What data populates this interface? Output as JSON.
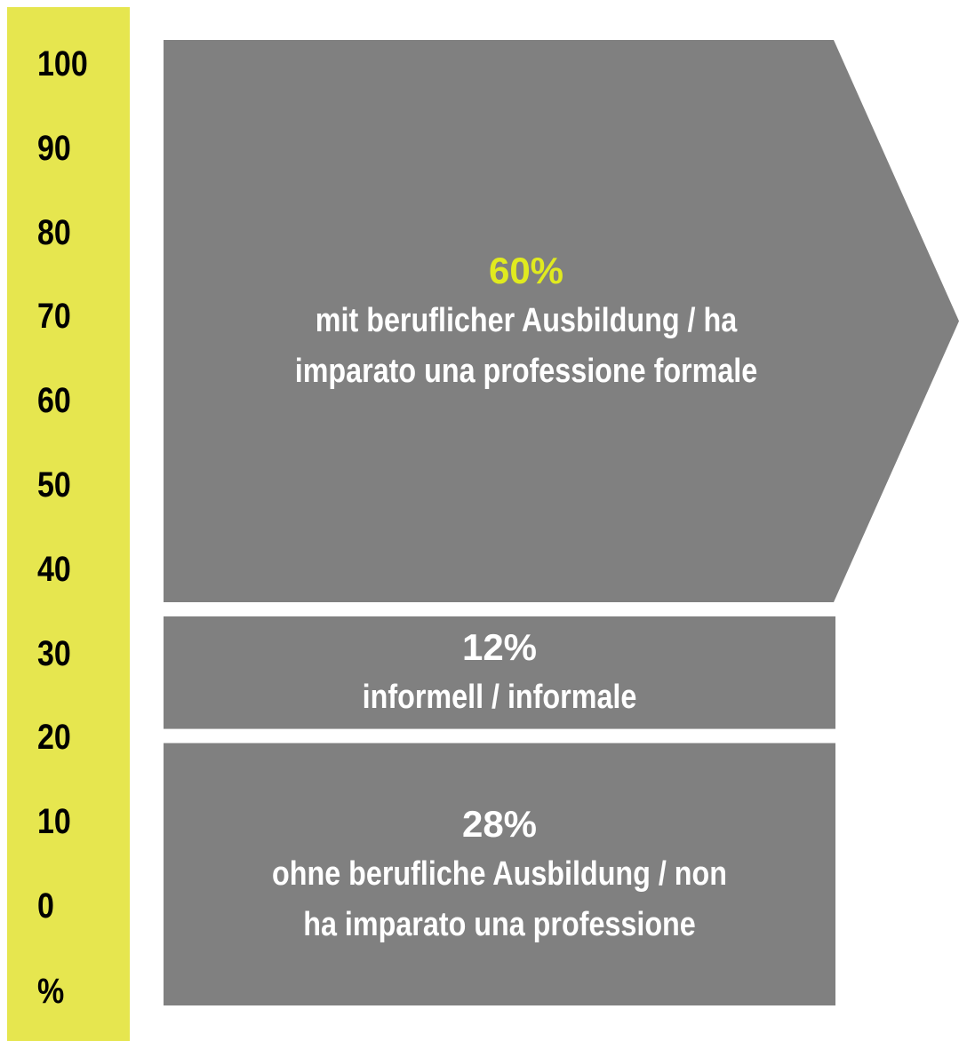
{
  "chart_data": {
    "type": "stacked_bar",
    "y_label": "%",
    "ylim": [
      0,
      100
    ],
    "yticks": [
      0,
      10,
      20,
      30,
      40,
      50,
      60,
      70,
      80,
      90,
      100
    ],
    "axis_color": "#e6e64f",
    "series": [
      {
        "name": "ohne berufliche Ausbildung / non ha imparato una professione",
        "color": "#808080",
        "label_color": "#ffffff",
        "values": [
          28
        ],
        "value_labels": [
          "28%"
        ]
      },
      {
        "name": "informell / informale",
        "color": "#808080",
        "label_color": "#ffffff",
        "values": [
          12
        ],
        "value_labels": [
          "12%"
        ]
      },
      {
        "name": "mit beruflicher Ausbildung / ha imparato una professione formale",
        "color": "#808080",
        "label_color": "#e0ea1f",
        "values": [
          60
        ],
        "value_labels": [
          "60%"
        ]
      }
    ]
  }
}
